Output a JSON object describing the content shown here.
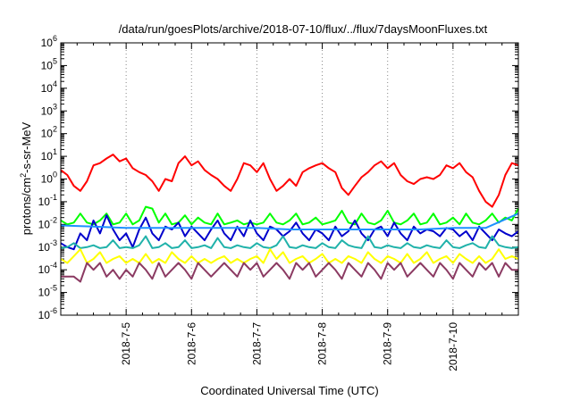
{
  "chart_data": {
    "type": "line",
    "title": "/data/run/goesPlots/archive/2018-07-10/flux/../flux/7daysMoonFluxes.txt",
    "xlabel": "Coordinated Universal Time (UTC)",
    "ylabel_parts": [
      "protons/cm",
      "2",
      "-s-sr-MeV"
    ],
    "y_scale": "log",
    "ylim": [
      1e-06,
      1000000.0
    ],
    "y_ticks": [
      {
        "base": "10",
        "exp": "-6",
        "value": 1e-06
      },
      {
        "base": "10",
        "exp": "-5",
        "value": 1e-05
      },
      {
        "base": "10",
        "exp": "-4",
        "value": 0.0001
      },
      {
        "base": "10",
        "exp": "-3",
        "value": 0.001
      },
      {
        "base": "10",
        "exp": "-2",
        "value": 0.01
      },
      {
        "base": "10",
        "exp": "-1",
        "value": 0.1
      },
      {
        "base": "10",
        "exp": "0",
        "value": 1
      },
      {
        "base": "10",
        "exp": "1",
        "value": 10
      },
      {
        "base": "10",
        "exp": "2",
        "value": 100
      },
      {
        "base": "10",
        "exp": "3",
        "value": 1000
      },
      {
        "base": "10",
        "exp": "4",
        "value": 10000
      },
      {
        "base": "10",
        "exp": "5",
        "value": 100000
      },
      {
        "base": "10",
        "exp": "6",
        "value": 1000000
      }
    ],
    "x_unit": "days",
    "x_start": "2018-07-04 00:00 UTC",
    "xlim": [
      0,
      7
    ],
    "x_ticks": [
      {
        "label": "2018-7-5",
        "value": 1
      },
      {
        "label": "2018-7-6",
        "value": 2
      },
      {
        "label": "2018-7-7",
        "value": 3
      },
      {
        "label": "2018-7-8",
        "value": 4
      },
      {
        "label": "2018-7-9",
        "value": 5
      },
      {
        "label": "2018-7-10",
        "value": 6
      }
    ],
    "grid": {
      "vertical": true,
      "horizontal": false,
      "style": "dotted"
    },
    "series": [
      {
        "color": "#ff0000",
        "x": [
          0,
          0.1,
          0.2,
          0.3,
          0.4,
          0.5,
          0.6,
          0.7,
          0.8,
          0.9,
          1.0,
          1.1,
          1.2,
          1.3,
          1.4,
          1.5,
          1.6,
          1.7,
          1.8,
          1.9,
          2.0,
          2.1,
          2.2,
          2.3,
          2.4,
          2.5,
          2.6,
          2.7,
          2.8,
          2.9,
          3.0,
          3.1,
          3.2,
          3.3,
          3.4,
          3.5,
          3.6,
          3.7,
          3.8,
          3.9,
          4.0,
          4.1,
          4.2,
          4.3,
          4.4,
          4.5,
          4.6,
          4.7,
          4.8,
          4.9,
          5.0,
          5.1,
          5.2,
          5.3,
          5.4,
          5.5,
          5.6,
          5.7,
          5.8,
          5.9,
          6.0,
          6.1,
          6.2,
          6.3,
          6.4,
          6.5,
          6.6,
          6.7,
          6.8,
          6.9,
          7.0
        ],
        "values": [
          2.5,
          1.5,
          0.5,
          0.3,
          0.8,
          4,
          5,
          8,
          12,
          6,
          8,
          3,
          2,
          1.5,
          0.8,
          0.3,
          1,
          0.8,
          5,
          10,
          4,
          6,
          2.5,
          1.5,
          1,
          0.5,
          0.3,
          1,
          5,
          4,
          2,
          5,
          1,
          0.3,
          0.5,
          1,
          0.5,
          2,
          3,
          4,
          5,
          3,
          2,
          0.4,
          0.2,
          0.5,
          1.2,
          2,
          4,
          6,
          3,
          5,
          1.5,
          0.8,
          0.6,
          1,
          1.2,
          1,
          1.5,
          4,
          3,
          5,
          2,
          1.2,
          0.3,
          0.1,
          0.06,
          0.2,
          1.5,
          5,
          4
        ]
      },
      {
        "color": "#00ff00",
        "x": [
          0,
          0.1,
          0.2,
          0.3,
          0.4,
          0.5,
          0.6,
          0.7,
          0.8,
          0.9,
          1.0,
          1.1,
          1.2,
          1.3,
          1.4,
          1.5,
          1.6,
          1.7,
          1.8,
          1.9,
          2.0,
          2.1,
          2.2,
          2.3,
          2.4,
          2.5,
          2.6,
          2.7,
          2.8,
          2.9,
          3.0,
          3.1,
          3.2,
          3.3,
          3.4,
          3.5,
          3.6,
          3.7,
          3.8,
          3.9,
          4.0,
          4.1,
          4.2,
          4.3,
          4.4,
          4.5,
          4.6,
          4.7,
          4.8,
          4.9,
          5.0,
          5.1,
          5.2,
          5.3,
          5.4,
          5.5,
          5.6,
          5.7,
          5.8,
          5.9,
          6.0,
          6.1,
          6.2,
          6.3,
          6.4,
          6.5,
          6.6,
          6.7,
          6.8,
          6.9,
          7.0
        ],
        "values": [
          0.015,
          0.01,
          0.012,
          0.03,
          0.012,
          0.01,
          0.015,
          0.03,
          0.01,
          0.012,
          0.03,
          0.01,
          0.015,
          0.06,
          0.05,
          0.012,
          0.03,
          0.01,
          0.012,
          0.025,
          0.01,
          0.02,
          0.012,
          0.01,
          0.03,
          0.01,
          0.012,
          0.015,
          0.01,
          0.012,
          0.01,
          0.012,
          0.03,
          0.012,
          0.01,
          0.015,
          0.03,
          0.01,
          0.012,
          0.02,
          0.01,
          0.012,
          0.015,
          0.04,
          0.012,
          0.01,
          0.03,
          0.012,
          0.01,
          0.015,
          0.04,
          0.012,
          0.01,
          0.015,
          0.03,
          0.01,
          0.012,
          0.03,
          0.01,
          0.012,
          0.02,
          0.01,
          0.03,
          0.012,
          0.01,
          0.015,
          0.03,
          0.012,
          0.02,
          0.015,
          0.05
        ]
      },
      {
        "color": "#0000cc",
        "x": [
          0,
          0.1,
          0.2,
          0.3,
          0.4,
          0.5,
          0.6,
          0.7,
          0.8,
          0.9,
          1.0,
          1.1,
          1.2,
          1.3,
          1.4,
          1.5,
          1.6,
          1.7,
          1.8,
          1.9,
          2.0,
          2.1,
          2.2,
          2.3,
          2.4,
          2.5,
          2.6,
          2.7,
          2.8,
          2.9,
          3.0,
          3.1,
          3.2,
          3.3,
          3.4,
          3.5,
          3.6,
          3.7,
          3.8,
          3.9,
          4.0,
          4.1,
          4.2,
          4.3,
          4.4,
          4.5,
          4.6,
          4.7,
          4.8,
          4.9,
          5.0,
          5.1,
          5.2,
          5.3,
          5.4,
          5.5,
          5.6,
          5.7,
          5.8,
          5.9,
          6.0,
          6.1,
          6.2,
          6.3,
          6.4,
          6.5,
          6.6,
          6.7,
          6.8,
          6.9,
          7.0
        ],
        "values": [
          0.0015,
          0.001,
          0.0008,
          0.004,
          0.002,
          0.015,
          0.004,
          0.025,
          0.006,
          0.002,
          0.004,
          0.001,
          0.006,
          0.02,
          0.004,
          0.002,
          0.008,
          0.006,
          0.012,
          0.003,
          0.008,
          0.004,
          0.002,
          0.006,
          0.015,
          0.004,
          0.002,
          0.008,
          0.003,
          0.015,
          0.004,
          0.002,
          0.008,
          0.006,
          0.003,
          0.005,
          0.012,
          0.004,
          0.002,
          0.006,
          0.004,
          0.002,
          0.008,
          0.003,
          0.005,
          0.015,
          0.004,
          0.002,
          0.006,
          0.008,
          0.003,
          0.012,
          0.004,
          0.002,
          0.008,
          0.004,
          0.006,
          0.005,
          0.003,
          0.007,
          0.006,
          0.003,
          0.005,
          0.002,
          0.008,
          0.004,
          0.002,
          0.006,
          0.004,
          0.003,
          0.005
        ]
      },
      {
        "color": "#1e90ff",
        "x": [
          0,
          0.5,
          1.0,
          1.5,
          2.0,
          2.5,
          3.0,
          3.5,
          4.0,
          4.5,
          5.0,
          5.5,
          6.0,
          6.5,
          7.0
        ],
        "values": [
          0.009,
          0.008,
          0.007,
          0.007,
          0.007,
          0.007,
          0.007,
          0.006,
          0.006,
          0.006,
          0.006,
          0.006,
          0.007,
          0.007,
          0.03
        ]
      },
      {
        "color": "#20b2aa",
        "x": [
          0,
          0.1,
          0.2,
          0.3,
          0.4,
          0.5,
          0.6,
          0.7,
          0.8,
          0.9,
          1.0,
          1.1,
          1.2,
          1.3,
          1.4,
          1.5,
          1.6,
          1.7,
          1.8,
          1.9,
          2.0,
          2.1,
          2.2,
          2.3,
          2.4,
          2.5,
          2.6,
          2.7,
          2.8,
          2.9,
          3.0,
          3.1,
          3.2,
          3.3,
          3.4,
          3.5,
          3.6,
          3.7,
          3.8,
          3.9,
          4.0,
          4.1,
          4.2,
          4.3,
          4.4,
          4.5,
          4.6,
          4.7,
          4.8,
          4.9,
          5.0,
          5.1,
          5.2,
          5.3,
          5.4,
          5.5,
          5.6,
          5.7,
          5.8,
          5.9,
          6.0,
          6.1,
          6.2,
          6.3,
          6.4,
          6.5,
          6.6,
          6.7,
          6.8,
          6.9,
          7.0
        ],
        "values": [
          0.0009,
          0.001,
          0.0015,
          0.0009,
          0.001,
          0.0012,
          0.0009,
          0.001,
          0.002,
          0.0009,
          0.001,
          0.0009,
          0.0012,
          0.003,
          0.0009,
          0.001,
          0.0015,
          0.0009,
          0.001,
          0.002,
          0.0009,
          0.001,
          0.0012,
          0.0009,
          0.0025,
          0.001,
          0.0009,
          0.0012,
          0.001,
          0.0009,
          0.0015,
          0.001,
          0.0009,
          0.0012,
          0.003,
          0.001,
          0.0009,
          0.0012,
          0.001,
          0.0009,
          0.0015,
          0.001,
          0.0009,
          0.002,
          0.0012,
          0.001,
          0.0009,
          0.003,
          0.001,
          0.0009,
          0.0012,
          0.001,
          0.0009,
          0.0015,
          0.001,
          0.0009,
          0.0012,
          0.001,
          0.0009,
          0.002,
          0.001,
          0.0009,
          0.0012,
          0.0015,
          0.001,
          0.0009,
          0.003,
          0.0012,
          0.001,
          0.0009,
          0.001
        ]
      },
      {
        "color": "#ffff00",
        "x": [
          0,
          0.1,
          0.2,
          0.3,
          0.4,
          0.5,
          0.6,
          0.7,
          0.8,
          0.9,
          1.0,
          1.1,
          1.2,
          1.3,
          1.4,
          1.5,
          1.6,
          1.7,
          1.8,
          1.9,
          2.0,
          2.1,
          2.2,
          2.3,
          2.4,
          2.5,
          2.6,
          2.7,
          2.8,
          2.9,
          3.0,
          3.1,
          3.2,
          3.3,
          3.4,
          3.5,
          3.6,
          3.7,
          3.8,
          3.9,
          4.0,
          4.1,
          4.2,
          4.3,
          4.4,
          4.5,
          4.6,
          4.7,
          4.8,
          4.9,
          5.0,
          5.1,
          5.2,
          5.3,
          5.4,
          5.5,
          5.6,
          5.7,
          5.8,
          5.9,
          6.0,
          6.1,
          6.2,
          6.3,
          6.4,
          6.5,
          6.6,
          6.7,
          6.8,
          6.9,
          7.0
        ],
        "values": [
          0.0003,
          0.0002,
          0.0004,
          0.0008,
          0.0002,
          0.0003,
          0.0006,
          0.0002,
          0.0003,
          0.0004,
          0.0002,
          0.0003,
          0.0002,
          0.0005,
          0.0002,
          0.0003,
          0.0002,
          0.0006,
          0.0003,
          0.0002,
          0.0004,
          0.0002,
          0.0003,
          0.0002,
          0.0003,
          0.0004,
          0.0002,
          0.0003,
          0.0002,
          0.0003,
          0.0004,
          0.0002,
          0.0008,
          0.0003,
          0.0006,
          0.0002,
          0.0003,
          0.0004,
          0.0002,
          0.0003,
          0.0005,
          0.0002,
          0.0003,
          0.0002,
          0.0004,
          0.0003,
          0.0002,
          0.0006,
          0.0003,
          0.0002,
          0.0004,
          0.0003,
          0.0002,
          0.0005,
          0.0002,
          0.0003,
          0.0006,
          0.0002,
          0.0003,
          0.0004,
          0.0002,
          0.0005,
          0.0003,
          0.0002,
          0.0004,
          0.0002,
          0.0003,
          0.0008,
          0.0003,
          0.0004,
          0.0003
        ]
      },
      {
        "color": "#8b3a62",
        "x": [
          0,
          0.1,
          0.2,
          0.3,
          0.4,
          0.5,
          0.6,
          0.7,
          0.8,
          0.9,
          1.0,
          1.1,
          1.2,
          1.3,
          1.4,
          1.5,
          1.6,
          1.7,
          1.8,
          1.9,
          2.0,
          2.1,
          2.2,
          2.3,
          2.4,
          2.5,
          2.6,
          2.7,
          2.8,
          2.9,
          3.0,
          3.1,
          3.2,
          3.3,
          3.4,
          3.5,
          3.6,
          3.7,
          3.8,
          3.9,
          4.0,
          4.1,
          4.2,
          4.3,
          4.4,
          4.5,
          4.6,
          4.7,
          4.8,
          4.9,
          5.0,
          5.1,
          5.2,
          5.3,
          5.4,
          5.5,
          5.6,
          5.7,
          5.8,
          5.9,
          6.0,
          6.1,
          6.2,
          6.3,
          6.4,
          6.5,
          6.6,
          6.7,
          6.8,
          6.9,
          7.0
        ],
        "values": [
          5e-05,
          5e-05,
          5e-05,
          3e-05,
          0.0002,
          0.0001,
          0.0002,
          5e-05,
          0.0001,
          4e-05,
          0.0001,
          5e-05,
          0.0002,
          0.0001,
          4e-05,
          0.0002,
          5e-05,
          0.0001,
          0.0002,
          0.0001,
          4e-05,
          0.0002,
          0.0001,
          5e-05,
          0.0001,
          0.0002,
          0.0001,
          5e-05,
          0.0002,
          0.0001,
          0.0002,
          5e-05,
          0.0001,
          0.0002,
          0.0001,
          4e-05,
          0.0002,
          0.0001,
          0.0002,
          5e-05,
          0.0001,
          0.0002,
          0.0001,
          4e-05,
          0.0002,
          0.0001,
          5e-05,
          0.0002,
          0.0001,
          4e-05,
          0.0002,
          0.0001,
          0.0002,
          5e-05,
          0.0001,
          0.0002,
          0.0001,
          5e-05,
          0.0002,
          0.0001,
          4e-05,
          0.0002,
          0.0001,
          5e-05,
          0.0002,
          0.0001,
          0.0002,
          5e-05,
          0.0002,
          0.0001,
          0.0001
        ]
      }
    ]
  }
}
